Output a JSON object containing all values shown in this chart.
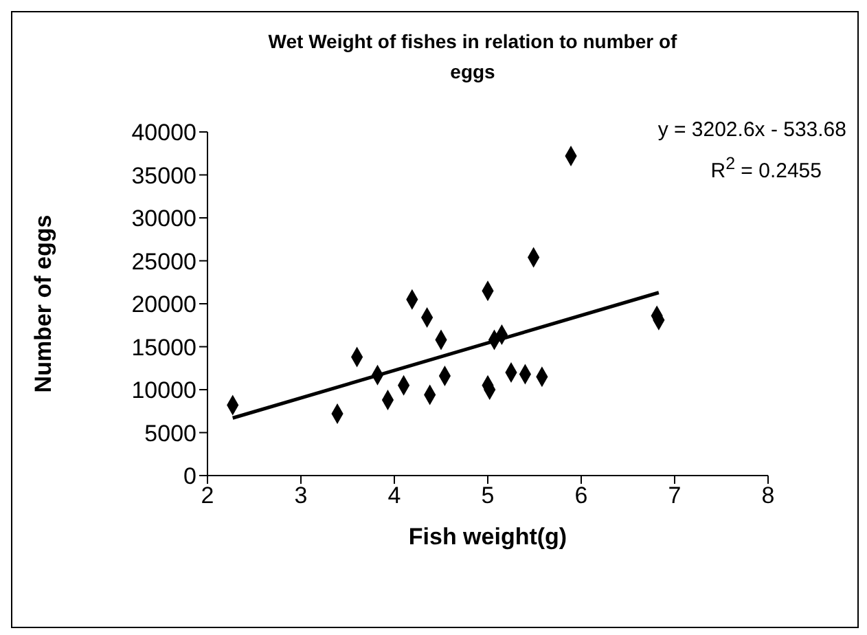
{
  "chart_data": {
    "type": "scatter",
    "title": "Wet Weight  of fishes in relation to number of eggs",
    "xlabel": "Fish weight(g)",
    "ylabel": "Number of eggs",
    "annotations": [
      "y = 3202.6x - 533.68",
      "R$^{2}$ = 0.2455"
    ],
    "xlim": [
      2,
      8
    ],
    "xticks": [
      2,
      3,
      4,
      5,
      6,
      7,
      8
    ],
    "ylim": [
      0,
      40000
    ],
    "yticks": [
      0,
      5000,
      10000,
      15000,
      20000,
      25000,
      30000,
      35000,
      40000
    ],
    "grid": false,
    "legend": false,
    "marker": "diamond",
    "series": [
      {
        "color": "#000000",
        "x": [
          2.27,
          3.39,
          3.6,
          3.82,
          3.93,
          4.1,
          4.19,
          4.35,
          4.38,
          4.5,
          4.54,
          5.0,
          5.0,
          5.02,
          5.07,
          5.15,
          5.25,
          5.4,
          5.58,
          5.49,
          5.89,
          6.81,
          6.83
        ],
        "values": [
          8200,
          7200,
          13800,
          11700,
          8800,
          10500,
          20500,
          18400,
          9400,
          15800,
          11600,
          21500,
          10500,
          10000,
          15800,
          16400,
          12000,
          11800,
          11500,
          25400,
          37200,
          18600,
          18100
        ]
      },
      {
        "type": "line",
        "color": "#000000",
        "line_style": "solid",
        "marker": "none",
        "x": [
          2.27,
          6.83
        ],
        "values": [
          6700,
          21300
        ]
      }
    ]
  }
}
